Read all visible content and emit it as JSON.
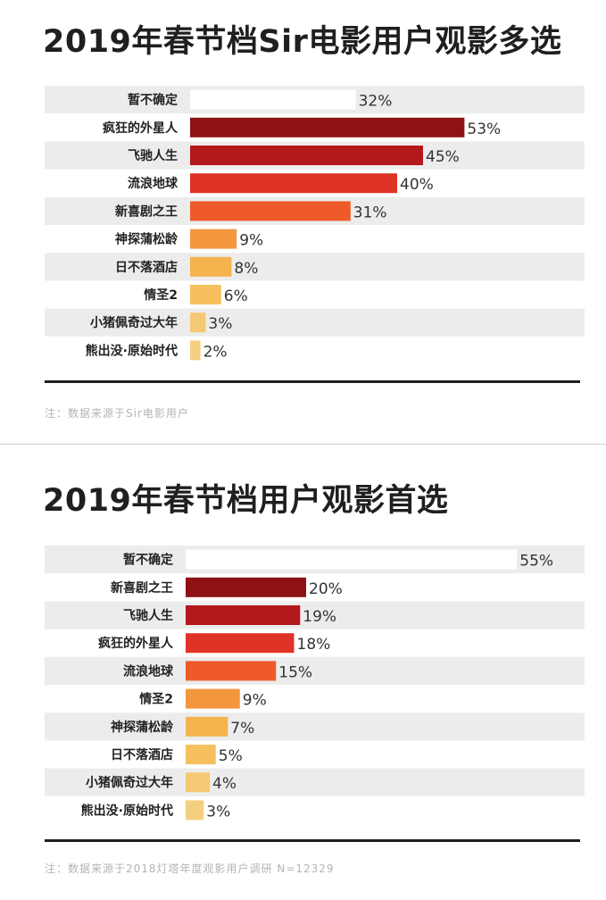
{
  "panels": [
    {
      "title": "2019年春节档Sir电影用户观影多选",
      "note": "注：数据来源于Sir电影用户",
      "chart_data": {
        "type": "bar",
        "orientation": "horizontal",
        "title": "2019年春节档Sir电影用户观影多选",
        "unit": "%",
        "categories": [
          "暂不确定",
          "疯狂的外星人",
          "飞驰人生",
          "流浪地球",
          "新喜剧之王",
          "神探蒲松龄",
          "日不落酒店",
          "情圣2",
          "小猪佩奇过大年",
          "熊出没·原始时代"
        ],
        "values": [
          32,
          53,
          45,
          40,
          31,
          9,
          8,
          6,
          3,
          2
        ],
        "labels": [
          "32%",
          "53%",
          "45%",
          "40%",
          "31%",
          "9%",
          "8%",
          "6%",
          "3%",
          "2%"
        ],
        "colors": [
          "#ffffff",
          "#8e1214",
          "#b3181c",
          "#e03327",
          "#ef5a2b",
          "#f3973e",
          "#f5b34e",
          "#f6c05e",
          "#f5c873",
          "#f5cf80"
        ],
        "xlim": [
          0,
          56
        ]
      }
    },
    {
      "title": "2019年春节档用户观影首选",
      "note": "注：数据来源于2018灯塔年度观影用户调研 N=12329",
      "chart_data": {
        "type": "bar",
        "orientation": "horizontal",
        "title": "2019年春节档用户观影首选",
        "unit": "%",
        "categories": [
          "暂不确定",
          "新喜剧之王",
          "飞驰人生",
          "疯狂的外星人",
          "流浪地球",
          "情圣2",
          "神探蒲松龄",
          "日不落酒店",
          "小猪佩奇过大年",
          "熊出没·原始时代"
        ],
        "values": [
          55,
          20,
          19,
          18,
          15,
          9,
          7,
          5,
          4,
          3
        ],
        "labels": [
          "55%",
          "20%",
          "19%",
          "18%",
          "15%",
          "9%",
          "7%",
          "5%",
          "4%",
          "3%"
        ],
        "colors": [
          "#ffffff",
          "#8e1214",
          "#b3181c",
          "#e03327",
          "#ef5a2b",
          "#f3973e",
          "#f5b34e",
          "#f6c05e",
          "#f5c873",
          "#f5cf80"
        ],
        "xlim": [
          0,
          56
        ]
      }
    }
  ]
}
